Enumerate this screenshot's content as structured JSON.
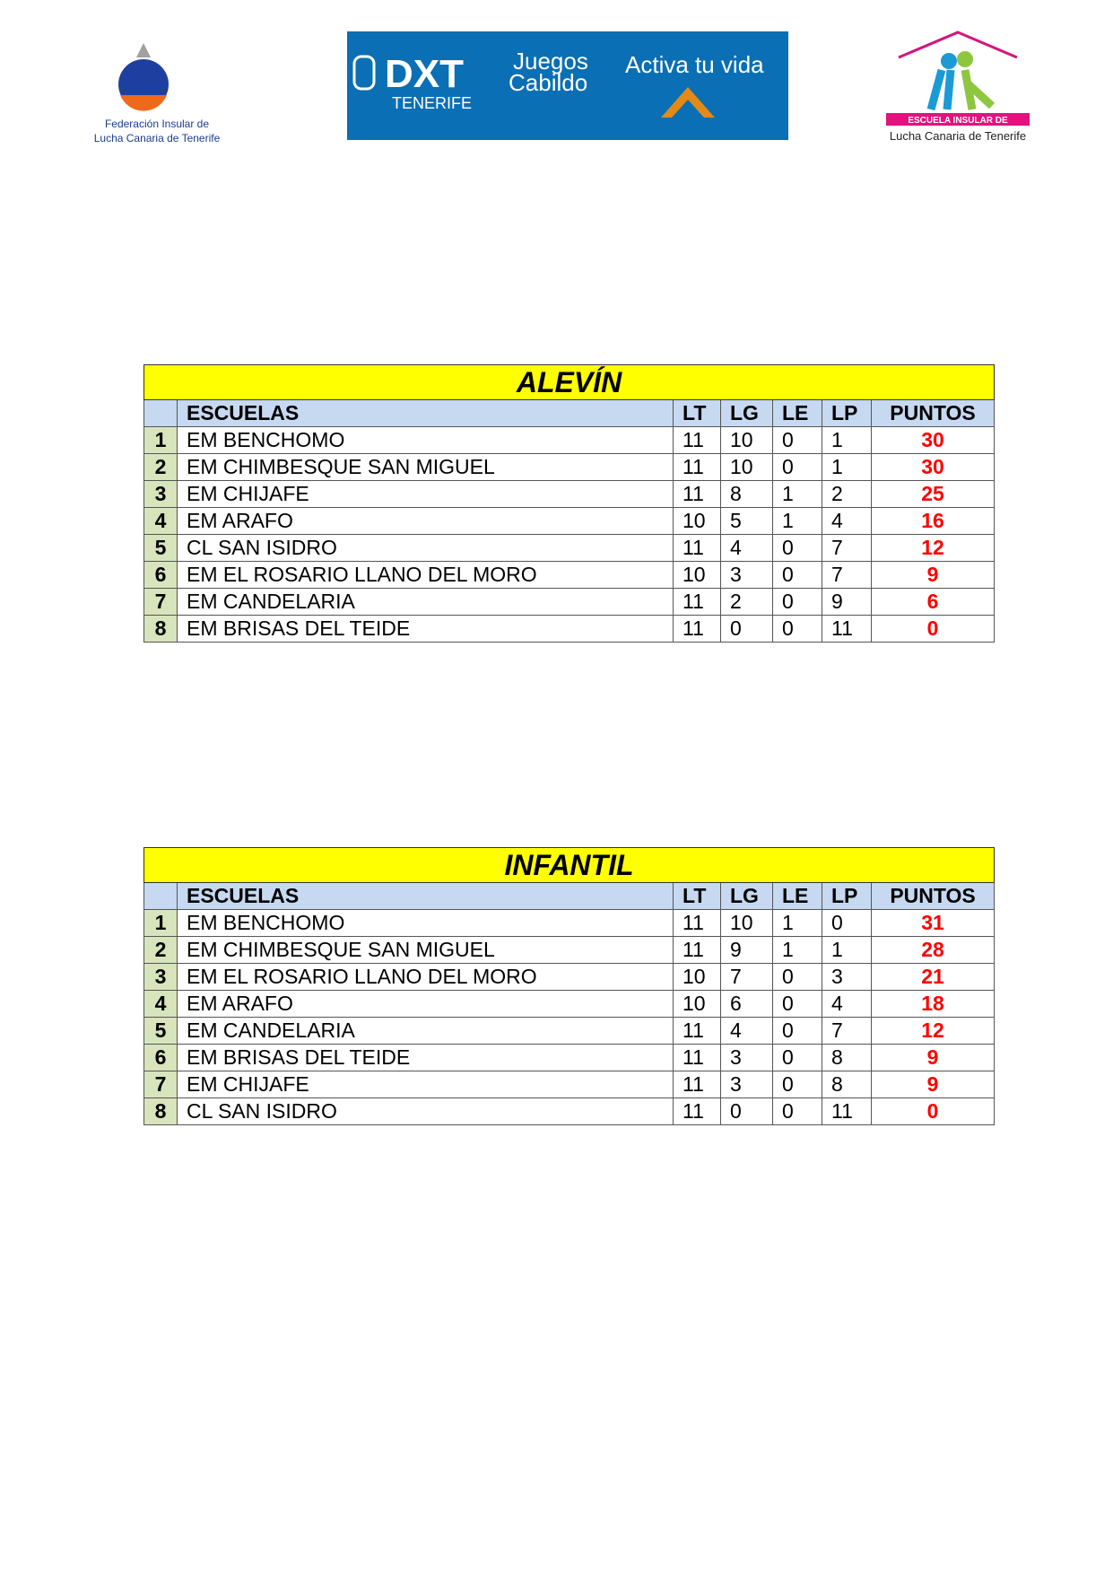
{
  "logos": {
    "left": {
      "line1": "Federación Insular de",
      "line2": "Lucha Canaria de Tenerife"
    },
    "banner": {
      "brand": "DXT",
      "sub": "TENERIFE",
      "games1": "Juegos",
      "games2": "Cabildo",
      "slogan": "Activa tu vida"
    },
    "right": {
      "line1": "ESCUELA INSULAR DE",
      "line2": "Lucha Canaria de Tenerife"
    }
  },
  "colors": {
    "title_bg": "#ffff00",
    "header_bg": "#c6d9f1",
    "rank_bg": "#d8e4bc",
    "points": "#ff0000"
  },
  "columns": [
    "ESCUELAS",
    "LT",
    "LG",
    "LE",
    "LP",
    "PUNTOS"
  ],
  "tables": [
    {
      "title": "ALEVÍN",
      "rows": [
        [
          "1",
          "EM BENCHOMO",
          "11",
          "10",
          "0",
          "1",
          "30"
        ],
        [
          "2",
          "EM CHIMBESQUE SAN MIGUEL",
          "11",
          "10",
          "0",
          "1",
          "30"
        ],
        [
          "3",
          "EM CHIJAFE",
          "11",
          "8",
          "1",
          "2",
          "25"
        ],
        [
          "4",
          "EM ARAFO",
          "10",
          "5",
          "1",
          "4",
          "16"
        ],
        [
          "5",
          "CL SAN ISIDRO",
          "11",
          "4",
          "0",
          "7",
          "12"
        ],
        [
          "6",
          "EM EL ROSARIO LLANO DEL MORO",
          "10",
          "3",
          "0",
          "7",
          "9"
        ],
        [
          "7",
          "EM CANDELARIA",
          "11",
          "2",
          "0",
          "9",
          "6"
        ],
        [
          "8",
          "EM BRISAS DEL TEIDE",
          "11",
          "0",
          "0",
          "11",
          "0"
        ]
      ]
    },
    {
      "title": "INFANTIL",
      "rows": [
        [
          "1",
          "EM BENCHOMO",
          "11",
          "10",
          "1",
          "0",
          "31"
        ],
        [
          "2",
          "EM CHIMBESQUE SAN MIGUEL",
          "11",
          "9",
          "1",
          "1",
          "28"
        ],
        [
          "3",
          "EM EL ROSARIO LLANO DEL MORO",
          "10",
          "7",
          "0",
          "3",
          "21"
        ],
        [
          "4",
          "EM ARAFO",
          "10",
          "6",
          "0",
          "4",
          "18"
        ],
        [
          "5",
          "EM CANDELARIA",
          "11",
          "4",
          "0",
          "7",
          "12"
        ],
        [
          "6",
          "EM BRISAS DEL TEIDE",
          "11",
          "3",
          "0",
          "8",
          "9"
        ],
        [
          "7",
          "EM CHIJAFE",
          "11",
          "3",
          "0",
          "8",
          "9"
        ],
        [
          "8",
          "CL SAN ISIDRO",
          "11",
          "0",
          "0",
          "11",
          "0"
        ]
      ]
    }
  ]
}
